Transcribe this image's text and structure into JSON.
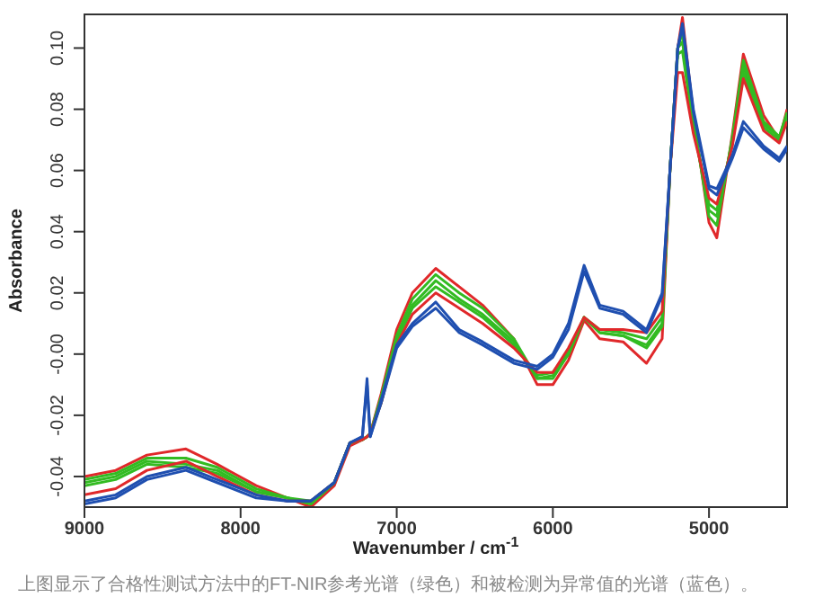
{
  "chart_data": {
    "type": "line",
    "xlabel": "Wavenumber / cm$^{-1}$",
    "ylabel": "Absorbance",
    "x": [
      9000,
      8800,
      8600,
      8350,
      8150,
      7900,
      7700,
      7550,
      7400,
      7300,
      7220,
      7190,
      7170,
      7100,
      7000,
      6900,
      6750,
      6600,
      6450,
      6250,
      6100,
      6000,
      5900,
      5800,
      5700,
      5550,
      5400,
      5300,
      5250,
      5200,
      5170,
      5100,
      5000,
      4950,
      4850,
      4780,
      4650,
      4550,
      4500
    ],
    "series": [
      {
        "color": "#e0282a",
        "values": [
          -0.04,
          -0.038,
          -0.033,
          -0.031,
          -0.036,
          -0.043,
          -0.047,
          -0.05,
          -0.043,
          -0.03,
          -0.028,
          -0.027,
          -0.026,
          -0.013,
          0.008,
          0.02,
          0.028,
          0.022,
          0.016,
          0.005,
          -0.01,
          -0.01,
          -0.002,
          0.011,
          0.005,
          0.004,
          -0.003,
          0.005,
          0.06,
          0.1,
          0.11,
          0.078,
          0.043,
          0.038,
          0.072,
          0.098,
          0.078,
          0.07,
          0.08
        ]
      },
      {
        "color": "#33bb22",
        "values": [
          -0.041,
          -0.039,
          -0.034,
          -0.034,
          -0.037,
          -0.044,
          -0.047,
          -0.049,
          -0.042,
          -0.029,
          -0.028,
          -0.027,
          -0.026,
          -0.014,
          0.006,
          0.018,
          0.026,
          0.02,
          0.015,
          0.005,
          -0.008,
          -0.008,
          0.0,
          0.012,
          0.007,
          0.006,
          0.002,
          0.009,
          0.06,
          0.1,
          0.105,
          0.076,
          0.045,
          0.042,
          0.071,
          0.096,
          0.076,
          0.071,
          0.079
        ]
      },
      {
        "color": "#33bb22",
        "values": [
          -0.042,
          -0.04,
          -0.035,
          -0.036,
          -0.038,
          -0.045,
          -0.047,
          -0.049,
          -0.042,
          -0.029,
          -0.028,
          -0.027,
          -0.026,
          -0.015,
          0.005,
          0.016,
          0.024,
          0.018,
          0.013,
          0.004,
          -0.008,
          -0.007,
          0.0,
          0.012,
          0.007,
          0.006,
          0.003,
          0.01,
          0.06,
          0.1,
          0.102,
          0.075,
          0.047,
          0.045,
          0.07,
          0.094,
          0.075,
          0.071,
          0.078
        ]
      },
      {
        "color": "#33bb22",
        "values": [
          -0.043,
          -0.041,
          -0.036,
          -0.037,
          -0.039,
          -0.045,
          -0.047,
          -0.048,
          -0.042,
          -0.029,
          -0.028,
          -0.027,
          -0.026,
          -0.016,
          0.004,
          0.015,
          0.022,
          0.017,
          0.012,
          0.003,
          -0.007,
          -0.006,
          0.001,
          0.012,
          0.008,
          0.007,
          0.005,
          0.012,
          0.06,
          0.098,
          0.099,
          0.074,
          0.049,
          0.047,
          0.069,
          0.092,
          0.074,
          0.07,
          0.077
        ]
      },
      {
        "color": "#e0282a",
        "values": [
          -0.046,
          -0.044,
          -0.038,
          -0.035,
          -0.04,
          -0.046,
          -0.048,
          -0.048,
          -0.042,
          -0.029,
          -0.028,
          -0.027,
          -0.026,
          -0.016,
          0.003,
          0.013,
          0.02,
          0.015,
          0.01,
          0.002,
          -0.006,
          -0.006,
          0.002,
          0.012,
          0.008,
          0.008,
          0.007,
          0.014,
          0.06,
          0.092,
          0.092,
          0.072,
          0.051,
          0.049,
          0.068,
          0.09,
          0.073,
          0.069,
          0.076
        ]
      },
      {
        "color": "#1f4fb0",
        "values": [
          -0.048,
          -0.046,
          -0.04,
          -0.037,
          -0.041,
          -0.046,
          -0.048,
          -0.048,
          -0.042,
          -0.029,
          -0.027,
          -0.008,
          -0.027,
          -0.015,
          0.003,
          0.01,
          0.017,
          0.008,
          0.004,
          -0.002,
          -0.004,
          0.0,
          0.01,
          0.029,
          0.016,
          0.014,
          0.008,
          0.02,
          0.06,
          0.1,
          0.108,
          0.08,
          0.055,
          0.054,
          0.065,
          0.076,
          0.068,
          0.064,
          0.068
        ]
      },
      {
        "color": "#1f4fb0",
        "values": [
          -0.049,
          -0.047,
          -0.041,
          -0.038,
          -0.042,
          -0.047,
          -0.048,
          -0.048,
          -0.042,
          -0.029,
          -0.027,
          -0.01,
          -0.027,
          -0.016,
          0.002,
          0.009,
          0.015,
          0.007,
          0.003,
          -0.003,
          -0.005,
          -0.001,
          0.008,
          0.027,
          0.015,
          0.013,
          0.007,
          0.019,
          0.06,
          0.1,
          0.107,
          0.079,
          0.054,
          0.052,
          0.064,
          0.074,
          0.067,
          0.063,
          0.067
        ]
      }
    ],
    "xlim": [
      9000,
      4500
    ],
    "xticks": [
      9000,
      8000,
      7000,
      6000,
      5000
    ],
    "ylim": [
      -0.05,
      0.111
    ],
    "yticks": [
      {
        "value": -0.04,
        "label": "-0.04"
      },
      {
        "value": -0.02,
        "label": "-0.02"
      },
      {
        "value": 0,
        "label": "-0.00"
      },
      {
        "value": 0.02,
        "label": "0.02"
      },
      {
        "value": 0.04,
        "label": "0.04"
      },
      {
        "value": 0.06,
        "label": "0.06"
      },
      {
        "value": 0.08,
        "label": "0.08"
      },
      {
        "value": 0.1,
        "label": "0.10"
      }
    ],
    "grid": false,
    "legend": false,
    "marker": "none",
    "line_style": "solid",
    "annotations": [
      "上图显示了合格性测试方法中的FT-NIR参考光谱（绿色）和被检测为异常值的光谱（蓝色）。"
    ]
  }
}
